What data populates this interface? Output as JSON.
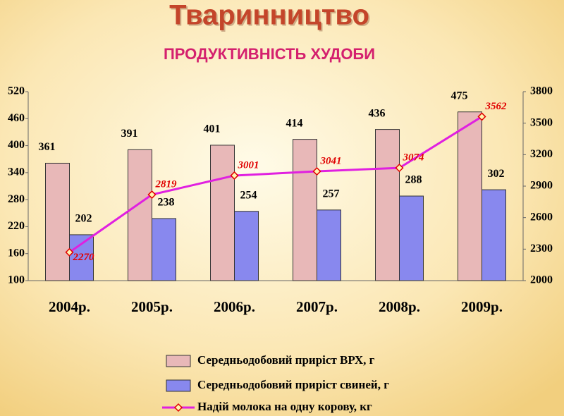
{
  "chart_data": {
    "type": "bar-line",
    "title": "Тваринництво",
    "subtitle": "ПРОДУКТИВНІСТЬ ХУДОБИ",
    "categories": [
      "2004р.",
      "2005р.",
      "2006р.",
      "2007р.",
      "2008р.",
      "2009р."
    ],
    "series": [
      {
        "name": "Середньодобовий приріст ВРХ, г",
        "type": "bar",
        "color": "#e8b8b8",
        "values": [
          361,
          391,
          401,
          414,
          436,
          475
        ]
      },
      {
        "name": "Середньодобовий приріст свиней, г",
        "type": "bar",
        "color": "#8888ee",
        "values": [
          202,
          238,
          254,
          257,
          288,
          302
        ]
      },
      {
        "name": "Надій молока на одну корову, кг",
        "type": "line",
        "axis": "y2",
        "color": "#e020e0",
        "values": [
          2270,
          2819,
          3001,
          3041,
          3074,
          3562
        ]
      }
    ],
    "ylim": [
      100,
      520
    ],
    "yticks": [
      100,
      160,
      220,
      280,
      340,
      400,
      460,
      520
    ],
    "y2lim": [
      2000,
      3800
    ],
    "y2ticks": [
      2000,
      2300,
      2600,
      2900,
      3200,
      3500,
      3800
    ],
    "legend": "bottom"
  }
}
